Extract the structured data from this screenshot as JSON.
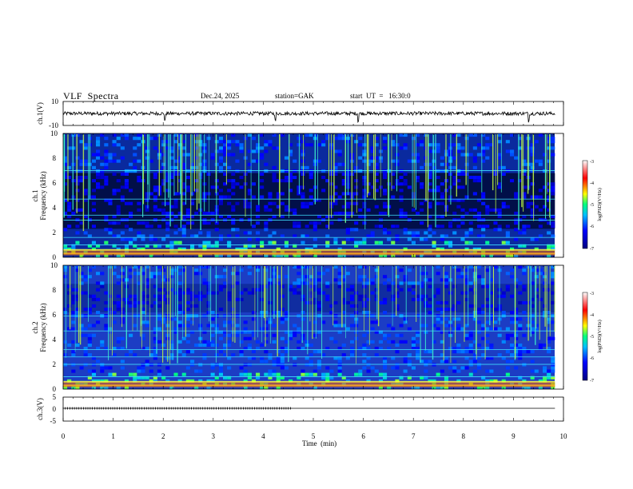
{
  "header": {
    "title": "VLF  Spectra",
    "date": "Dec.24, 2025",
    "station": "station=GAK",
    "start": "start  UT  =   16:30:0"
  },
  "chart_data": [
    {
      "type": "line",
      "panel": "ch1-waveform",
      "ylabel": "ch.1(V)",
      "xlim": [
        0,
        10
      ],
      "ylim": [
        -10,
        10
      ],
      "yticks": [
        "10",
        "-10"
      ],
      "x_end": 9.83,
      "baseline": 0,
      "noise_amplitude": 1.5,
      "spikes_x": [
        2.03,
        4.24,
        5.9,
        9.3
      ],
      "color": "#000000"
    },
    {
      "type": "heatmap",
      "panel": "ch1-spectrogram",
      "ylabel": [
        "ch.1",
        "Frequency (kHz)"
      ],
      "xlim": [
        0,
        10
      ],
      "ylim": [
        0,
        10
      ],
      "yticks": [
        "0",
        "2",
        "4",
        "6",
        "8",
        "10"
      ],
      "x_end": 9.83,
      "colorbar": {
        "label": "log(PSD)(V²/Hz)",
        "range": [
          -7,
          -3
        ],
        "ticks": [
          "-3",
          "-4",
          "-5",
          "-6",
          "-7"
        ]
      },
      "bands_khz": [
        0.3,
        0.6,
        1.0,
        1.6,
        3.0,
        3.4,
        4.7,
        7.0
      ],
      "dark_region_khz": [
        2.3,
        6.8
      ],
      "emission_region_khz": [
        0,
        1.3
      ]
    },
    {
      "type": "heatmap",
      "panel": "ch2-spectrogram",
      "ylabel": [
        "ch.2",
        "Frequency (kHz)"
      ],
      "xlim": [
        0,
        10
      ],
      "ylim": [
        0,
        10
      ],
      "yticks": [
        "0",
        "2",
        "4",
        "6",
        "8",
        "10"
      ],
      "x_end": 9.83,
      "colorbar": {
        "label": "log(PSD)(V²/Hz)",
        "range": [
          -7,
          -3
        ],
        "ticks": [
          "-3",
          "-4",
          "-5",
          "-6",
          "-7"
        ]
      },
      "bands_khz": [
        0.3,
        0.6,
        1.0,
        2.0,
        2.6,
        3.2,
        4.7,
        5.9
      ],
      "dark_region_khz": [
        6.2,
        8.5
      ],
      "emission_region_khz": [
        0,
        1.3
      ]
    },
    {
      "type": "line",
      "panel": "ch3-waveform",
      "ylabel": "ch.3(V)",
      "xlim": [
        0,
        10
      ],
      "ylim": [
        -5,
        5
      ],
      "yticks": [
        "5",
        "0",
        "-5"
      ],
      "x_end": 9.83,
      "level": 0,
      "pulse_train_end": 4.55,
      "color": "#000000"
    }
  ],
  "xaxis": {
    "label": "Time  (min)",
    "ticks": [
      "0",
      "1",
      "2",
      "3",
      "4",
      "5",
      "6",
      "7",
      "8",
      "9",
      "10"
    ]
  }
}
